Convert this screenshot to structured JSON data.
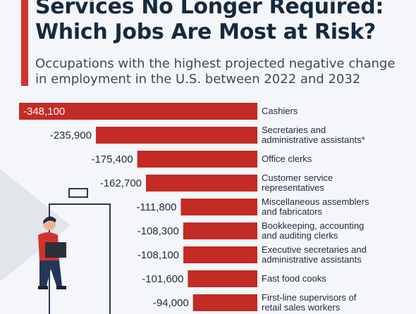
{
  "header": {
    "title_line1": "Services No Longer Required:",
    "title_line2": "Which Jobs Are Most at Risk?",
    "subtitle_line1": "Occupations with the highest projected negative change",
    "subtitle_line2": "in employment in the U.S. between 2022 and 2032"
  },
  "colors": {
    "bar": "#c32b25",
    "accent": "#d1332b",
    "text": "#152a3e"
  },
  "chart_data": {
    "type": "bar",
    "orientation": "horizontal",
    "categories": [
      [
        "Cashiers"
      ],
      [
        "Secretaries and",
        "administrative assistants*"
      ],
      [
        "Office clerks"
      ],
      [
        "Customer service",
        "representatives"
      ],
      [
        "Miscellaneous assemblers",
        "and fabricators"
      ],
      [
        "Bookkeeping, accounting",
        "and auditing clerks"
      ],
      [
        "Executive secretaries and",
        "administrative assistants"
      ],
      [
        "Fast food cooks"
      ],
      [
        "First-line supervisors of",
        "retail sales workers"
      ]
    ],
    "values": [
      -348100,
      -235900,
      -175400,
      -162700,
      -111800,
      -108300,
      -108100,
      -101600,
      -94000
    ],
    "value_labels": [
      "-348,100",
      "-235,900",
      "-175,400",
      "-162,700",
      "-111,800",
      "-108,300",
      "-108,100",
      "-101,600",
      "-94,000"
    ],
    "xlim": [
      -348100,
      0
    ]
  }
}
